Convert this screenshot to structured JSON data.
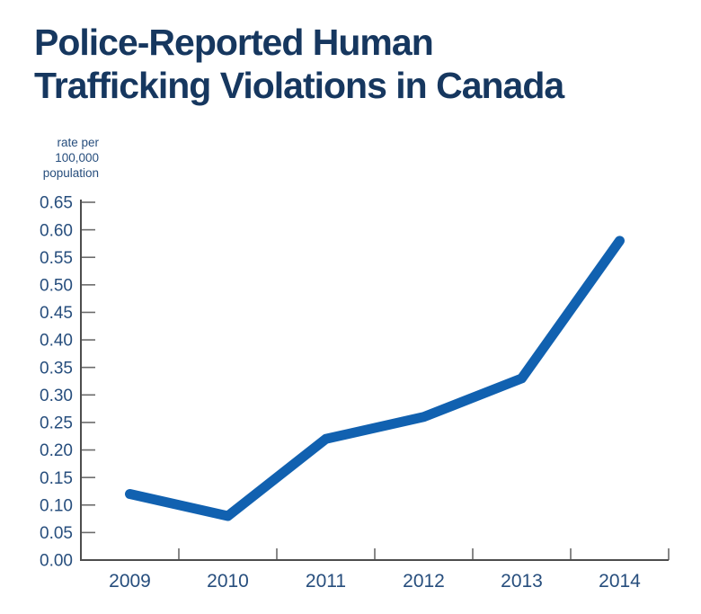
{
  "title": {
    "text": "Police-Reported Human\nTrafficking Violations in Canada",
    "color": "#16375f"
  },
  "y_unit_label": "rate per\n100,000\npopulation",
  "chart_data": {
    "type": "line",
    "title": "Police-Reported Human Trafficking Violations in Canada",
    "xlabel": "",
    "ylabel": "rate per 100,000 population",
    "categories": [
      "2009",
      "2010",
      "2011",
      "2012",
      "2013",
      "2014"
    ],
    "series": [
      {
        "name": "rate per 100,000 population",
        "values": [
          0.12,
          0.08,
          0.22,
          0.26,
          0.33,
          0.58
        ]
      }
    ],
    "ylim": [
      0.0,
      0.65
    ],
    "ytick_step": 0.05,
    "ytick_labels": [
      "0.00",
      "0.05",
      "0.10",
      "0.15",
      "0.20",
      "0.25",
      "0.30",
      "0.35",
      "0.40",
      "0.45",
      "0.50",
      "0.55",
      "0.60",
      "0.65"
    ],
    "grid": false,
    "legend_position": "none",
    "colors": {
      "line": "#1161b0",
      "axis": "#4d4d4d",
      "tick": "#6b6b6b",
      "tick_label": "#274e7d",
      "title": "#16375f",
      "background": "#ffffff"
    }
  }
}
